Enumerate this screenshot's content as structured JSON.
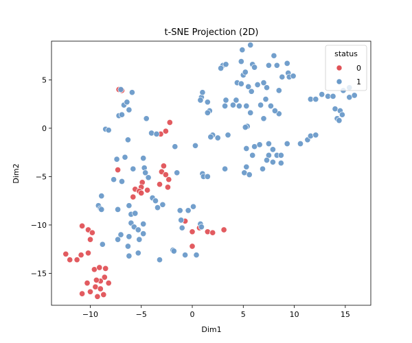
{
  "chart_data": {
    "type": "scatter",
    "title": "t-SNE Projection (2D)",
    "xlabel": "Dim1",
    "ylabel": "Dim2",
    "xlim": [
      -13.8,
      17.5
    ],
    "ylim": [
      -18.3,
      9.0
    ],
    "xticks": [
      -10,
      -5,
      0,
      5,
      10,
      15
    ],
    "yticks": [
      -15,
      -10,
      -5,
      0,
      5
    ],
    "grid": false,
    "legend": {
      "title": "status",
      "placement": "top-right"
    },
    "series": [
      {
        "name": "0",
        "color": "#e05257",
        "points": [
          [
            -7.2,
            4.0
          ],
          [
            -6.9,
            3.9
          ],
          [
            -2.2,
            0.6
          ],
          [
            -3.1,
            -0.6
          ],
          [
            -2.6,
            -0.3
          ],
          [
            -7.3,
            -4.3
          ],
          [
            -2.8,
            -3.9
          ],
          [
            -3.0,
            -4.5
          ],
          [
            -2.6,
            -4.8
          ],
          [
            -2.3,
            -5.3
          ],
          [
            -3.2,
            -5.8
          ],
          [
            -2.4,
            -6.1
          ],
          [
            -4.9,
            -5.6
          ],
          [
            -5.0,
            -6.1
          ],
          [
            -5.6,
            -6.3
          ],
          [
            -5.2,
            -6.5
          ],
          [
            -5.0,
            -6.7
          ],
          [
            -4.4,
            -6.4
          ],
          [
            -5.8,
            -7.1
          ],
          [
            -0.7,
            -9.6
          ],
          [
            0.7,
            -10.3
          ],
          [
            0.0,
            -10.7
          ],
          [
            1.5,
            -10.7
          ],
          [
            2.0,
            -10.8
          ],
          [
            3.1,
            -10.5
          ],
          [
            0.0,
            -12.2
          ],
          [
            -10.8,
            -10.1
          ],
          [
            -10.2,
            -10.5
          ],
          [
            -9.8,
            -10.8
          ],
          [
            -10.0,
            -11.5
          ],
          [
            -12.4,
            -13.0
          ],
          [
            -12.0,
            -13.6
          ],
          [
            -11.3,
            -13.6
          ],
          [
            -10.9,
            -13.1
          ],
          [
            -10.2,
            -12.9
          ],
          [
            -9.6,
            -14.6
          ],
          [
            -9.1,
            -14.4
          ],
          [
            -8.5,
            -14.5
          ],
          [
            -8.6,
            -15.4
          ],
          [
            -9.0,
            -15.8
          ],
          [
            -9.4,
            -15.7
          ],
          [
            -10.3,
            -16.0
          ],
          [
            -9.5,
            -16.4
          ],
          [
            -9.0,
            -16.6
          ],
          [
            -8.2,
            -16.0
          ],
          [
            -10.0,
            -16.9
          ],
          [
            -10.8,
            -17.1
          ],
          [
            -9.3,
            -17.4
          ],
          [
            -8.7,
            -17.2
          ]
        ]
      },
      {
        "name": "1",
        "color": "#6a9ac9",
        "points": [
          [
            -7.0,
            4.0
          ],
          [
            -5.9,
            3.7
          ],
          [
            -6.7,
            2.4
          ],
          [
            -6.4,
            2.7
          ],
          [
            -6.2,
            1.9
          ],
          [
            -7.2,
            1.3
          ],
          [
            -6.9,
            1.4
          ],
          [
            -4.5,
            1.0
          ],
          [
            -8.5,
            -0.1
          ],
          [
            -8.2,
            -0.2
          ],
          [
            -4.0,
            -0.5
          ],
          [
            -3.5,
            -0.6
          ],
          [
            -6.3,
            -1.2
          ],
          [
            -1.7,
            -1.9
          ],
          [
            -7.4,
            -3.2
          ],
          [
            -6.6,
            -3.0
          ],
          [
            -4.8,
            -3.1
          ],
          [
            -4.7,
            -4.1
          ],
          [
            -5.8,
            -4.2
          ],
          [
            -7.7,
            -5.3
          ],
          [
            -6.9,
            -5.5
          ],
          [
            -4.6,
            -4.6
          ],
          [
            -4.3,
            -5.1
          ],
          [
            -1.5,
            -4.6
          ],
          [
            -3.9,
            -7.2
          ],
          [
            -3.6,
            -7.5
          ],
          [
            -8.9,
            -7.0
          ],
          [
            -2.9,
            -7.9
          ],
          [
            -1.2,
            -8.5
          ],
          [
            -9.2,
            -8.0
          ],
          [
            -9.0,
            -8.3
          ],
          [
            -8.9,
            -8.4
          ],
          [
            -7.3,
            -8.4
          ],
          [
            -6.2,
            -8.0
          ],
          [
            -6.0,
            -8.9
          ],
          [
            -5.6,
            -8.8
          ],
          [
            -3.4,
            -8.2
          ],
          [
            0.1,
            -8.1
          ],
          [
            -0.4,
            -8.5
          ],
          [
            -6.0,
            -9.8
          ],
          [
            -4.8,
            -9.9
          ],
          [
            -5.7,
            -10.2
          ],
          [
            -5.3,
            -10.5
          ],
          [
            -4.8,
            -10.9
          ],
          [
            -1.0,
            -10.3
          ],
          [
            -1.1,
            -9.5
          ],
          [
            0.8,
            -9.9
          ],
          [
            0.9,
            -10.2
          ],
          [
            -7.0,
            -11.0
          ],
          [
            -7.3,
            -11.5
          ],
          [
            -6.2,
            -11.2
          ],
          [
            -5.2,
            -11.5
          ],
          [
            -8.8,
            -12.0
          ],
          [
            -6.3,
            -12.2
          ],
          [
            -5.3,
            -12.9
          ],
          [
            -6.2,
            -13.2
          ],
          [
            -3.2,
            -13.6
          ],
          [
            -0.7,
            -13.1
          ],
          [
            0.4,
            -13.1
          ],
          [
            -1.9,
            -12.6
          ],
          [
            -1.8,
            -12.7
          ],
          [
            0.9,
            3.2
          ],
          [
            1.0,
            3.7
          ],
          [
            1.5,
            2.7
          ],
          [
            0.8,
            2.9
          ],
          [
            1.7,
            1.8
          ],
          [
            1.5,
            1.6
          ],
          [
            3.0,
            6.5
          ],
          [
            3.3,
            6.6
          ],
          [
            2.8,
            6.2
          ],
          [
            4.8,
            6.9
          ],
          [
            4.4,
            4.7
          ],
          [
            4.8,
            4.6
          ],
          [
            5.0,
            5.5
          ],
          [
            5.2,
            5.8
          ],
          [
            5.5,
            4.3
          ],
          [
            5.8,
            3.8
          ],
          [
            5.9,
            6.6
          ],
          [
            6.1,
            6.3
          ],
          [
            5.7,
            8.6
          ],
          [
            4.9,
            8.1
          ],
          [
            6.4,
            4.5
          ],
          [
            7.0,
            4.7
          ],
          [
            7.3,
            4.2
          ],
          [
            7.5,
            6.5
          ],
          [
            8.0,
            7.5
          ],
          [
            8.3,
            6.5
          ],
          [
            8.8,
            5.3
          ],
          [
            9.3,
            6.7
          ],
          [
            9.4,
            5.7
          ],
          [
            9.5,
            5.3
          ],
          [
            9.9,
            5.4
          ],
          [
            8.5,
            3.9
          ],
          [
            3.3,
            2.9
          ],
          [
            3.2,
            2.3
          ],
          [
            4.0,
            2.4
          ],
          [
            4.3,
            2.9
          ],
          [
            4.6,
            2.3
          ],
          [
            5.3,
            2.3
          ],
          [
            5.7,
            1.6
          ],
          [
            6.7,
            2.4
          ],
          [
            7.2,
            3.0
          ],
          [
            7.7,
            2.3
          ],
          [
            8.5,
            1.5
          ],
          [
            8.1,
            1.8
          ],
          [
            7.0,
            1.0
          ],
          [
            5.4,
            0.2
          ],
          [
            5.2,
            0.1
          ],
          [
            2.0,
            -0.7
          ],
          [
            1.8,
            -0.9
          ],
          [
            2.5,
            -1.0
          ],
          [
            3.5,
            -0.7
          ],
          [
            0.3,
            -1.8
          ],
          [
            5.3,
            -2.1
          ],
          [
            6.1,
            -1.9
          ],
          [
            6.6,
            -1.7
          ],
          [
            7.5,
            -1.6
          ],
          [
            7.9,
            -2.2
          ],
          [
            9.3,
            -1.6
          ],
          [
            10.6,
            -1.6
          ],
          [
            11.3,
            -1.2
          ],
          [
            11.6,
            -0.8
          ],
          [
            12.1,
            -0.7
          ],
          [
            5.9,
            -2.8
          ],
          [
            7.5,
            -2.8
          ],
          [
            8.3,
            -2.8
          ],
          [
            8.7,
            -2.8
          ],
          [
            7.3,
            -3.3
          ],
          [
            7.9,
            -3.5
          ],
          [
            8.7,
            -3.6
          ],
          [
            5.3,
            -4.0
          ],
          [
            5.1,
            -4.6
          ],
          [
            5.6,
            -4.8
          ],
          [
            6.9,
            -4.2
          ],
          [
            3.2,
            -4.2
          ],
          [
            1.0,
            -4.7
          ],
          [
            1.1,
            -5.0
          ],
          [
            1.5,
            -5.0
          ],
          [
            11.6,
            3.0
          ],
          [
            12.1,
            3.0
          ],
          [
            12.7,
            3.5
          ],
          [
            13.3,
            3.3
          ],
          [
            13.8,
            3.3
          ],
          [
            14.0,
            2.0
          ],
          [
            14.5,
            1.8
          ],
          [
            14.7,
            1.4
          ],
          [
            14.2,
            1.0
          ],
          [
            14.4,
            0.8
          ],
          [
            14.8,
            3.9
          ],
          [
            15.4,
            4.2
          ],
          [
            15.4,
            3.2
          ],
          [
            15.9,
            3.4
          ]
        ]
      }
    ]
  }
}
